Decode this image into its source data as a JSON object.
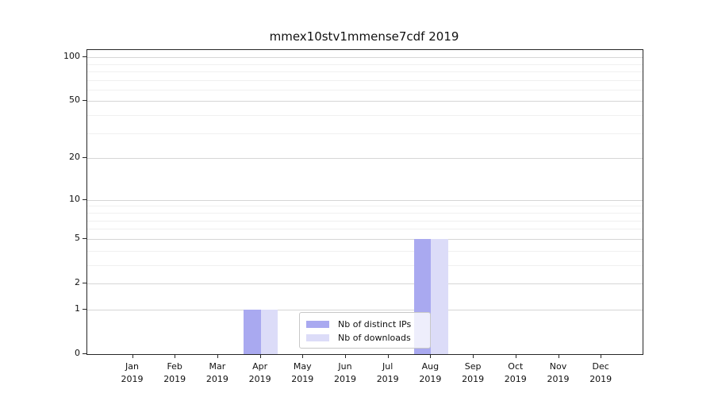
{
  "title": "mmex10stv1mmense7cdf 2019",
  "chart_data": {
    "type": "bar",
    "title": "mmex10stv1mmense7cdf 2019",
    "categories": [
      "Jan",
      "Feb",
      "Mar",
      "Apr",
      "May",
      "Jun",
      "Jul",
      "Aug",
      "Sep",
      "Oct",
      "Nov",
      "Dec"
    ],
    "x_year_label": "2019",
    "series": [
      {
        "name": "Nb of distinct IPs",
        "color": "#a9a9f0",
        "values": [
          0,
          0,
          0,
          1,
          0,
          0,
          0,
          5,
          0,
          0,
          0,
          0
        ]
      },
      {
        "name": "Nb of downloads",
        "color": "#dcdcf8",
        "values": [
          0,
          0,
          0,
          1,
          0,
          0,
          0,
          5,
          0,
          0,
          0,
          0
        ]
      }
    ],
    "yscale": "log1p",
    "ylim": [
      0,
      112
    ],
    "ytick_values": [
      0,
      1,
      2,
      5,
      10,
      20,
      50,
      100
    ],
    "ytick_labels": [
      "0",
      "1",
      "2",
      "5",
      "10",
      "20",
      "50",
      "100"
    ],
    "major_gridline_values": [
      1,
      2,
      5,
      10,
      20,
      50,
      100
    ],
    "minor_gridline_values": [
      3,
      4,
      6,
      7,
      8,
      9,
      30,
      40,
      60,
      70,
      80,
      90
    ],
    "grid": true,
    "legend": {
      "position": "lower center-right inside plot",
      "entries": [
        "Nb of distinct IPs",
        "Nb of downloads"
      ]
    },
    "colors": {
      "axis": "#262626",
      "grid_major": "#d6d6d6",
      "grid_minor": "#f0f0f0",
      "background": "#ffffff"
    }
  }
}
